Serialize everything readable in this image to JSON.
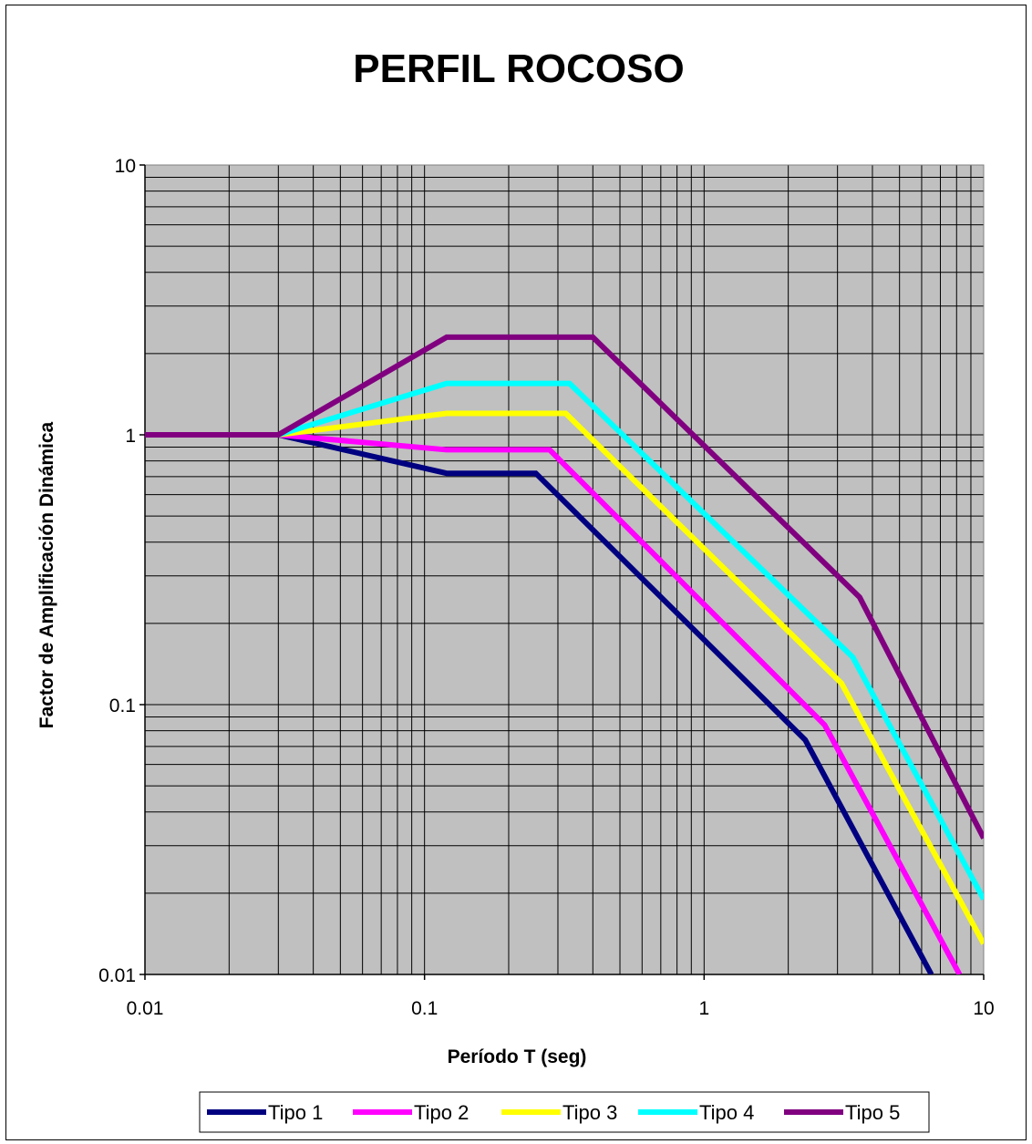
{
  "chart_data": {
    "type": "line",
    "title": "PERFIL ROCOSO",
    "xlabel": "Período T (seg)",
    "ylabel": "Factor de Amplificación Dinámica",
    "x_scale": "log",
    "y_scale": "log",
    "xlim": [
      0.01,
      10
    ],
    "ylim": [
      0.01,
      10
    ],
    "x_ticks": [
      "0.01",
      "0.1",
      "1",
      "10"
    ],
    "y_ticks": [
      "0.01",
      "0.1",
      "1",
      "10"
    ],
    "grid": true,
    "plot_background": "#c0c0c0",
    "legend_position": "bottom",
    "series": [
      {
        "name": "Tipo 1",
        "color": "#000080",
        "points": [
          [
            0.01,
            1.0
          ],
          [
            0.03,
            1.0
          ],
          [
            0.12,
            0.72
          ],
          [
            0.25,
            0.72
          ],
          [
            2.3,
            0.074
          ],
          [
            6.5,
            0.01
          ]
        ]
      },
      {
        "name": "Tipo 2",
        "color": "#ff00ff",
        "points": [
          [
            0.01,
            1.0
          ],
          [
            0.03,
            1.0
          ],
          [
            0.12,
            0.88
          ],
          [
            0.28,
            0.88
          ],
          [
            2.7,
            0.084
          ],
          [
            8.2,
            0.01
          ]
        ]
      },
      {
        "name": "Tipo 3",
        "color": "#ffff00",
        "points": [
          [
            0.01,
            1.0
          ],
          [
            0.03,
            1.0
          ],
          [
            0.12,
            1.2
          ],
          [
            0.32,
            1.2
          ],
          [
            3.1,
            0.12
          ],
          [
            10,
            0.013
          ]
        ]
      },
      {
        "name": "Tipo 4",
        "color": "#00ffff",
        "points": [
          [
            0.01,
            1.0
          ],
          [
            0.03,
            1.0
          ],
          [
            0.12,
            1.55
          ],
          [
            0.33,
            1.55
          ],
          [
            3.4,
            0.15
          ],
          [
            10,
            0.019
          ]
        ]
      },
      {
        "name": "Tipo 5",
        "color": "#800080",
        "points": [
          [
            0.01,
            1.0
          ],
          [
            0.03,
            1.0
          ],
          [
            0.12,
            2.3
          ],
          [
            0.4,
            2.3
          ],
          [
            3.6,
            0.25
          ],
          [
            10,
            0.032
          ]
        ]
      }
    ]
  }
}
